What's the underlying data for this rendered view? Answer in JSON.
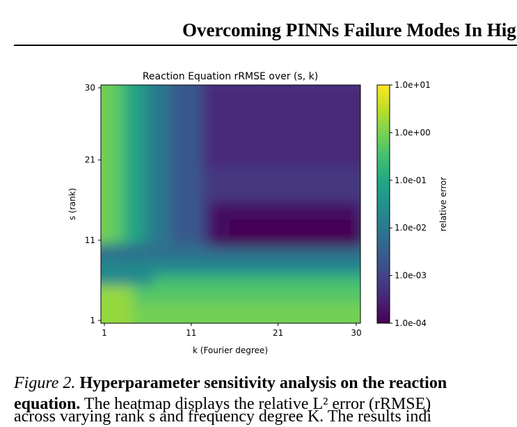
{
  "header": {
    "running_title": "Overcoming PINNs Failure Modes In Hig"
  },
  "chart_data": {
    "type": "heatmap",
    "title": "Reaction Equation rRMSE over (s, k)",
    "xlabel": "k (Fourier degree)",
    "ylabel": "s (rank)",
    "x_ticks": [
      "1",
      "11",
      "21",
      "30"
    ],
    "y_ticks": [
      "1",
      "11",
      "21",
      "30"
    ],
    "xlim": [
      1,
      30
    ],
    "ylim": [
      1,
      30
    ],
    "colorbar": {
      "label": "relative error",
      "scale": "log",
      "ticks": [
        "1.0e+01",
        "1.0e+00",
        "1.0e-01",
        "1.0e-02",
        "1.0e-03",
        "1.0e-04"
      ],
      "range": [
        0.0001,
        10
      ],
      "colormap": "viridis"
    },
    "grid": false
  },
  "caption": {
    "label": "Figure 2.",
    "bold": "Hyperparameter sensitivity analysis on the reaction",
    "line2_bold": "equation.",
    "line2_text": " The heatmap displays the relative L² error (rRMSE)",
    "line3_text": "across varying rank s and frequency degree K. The results indi"
  }
}
